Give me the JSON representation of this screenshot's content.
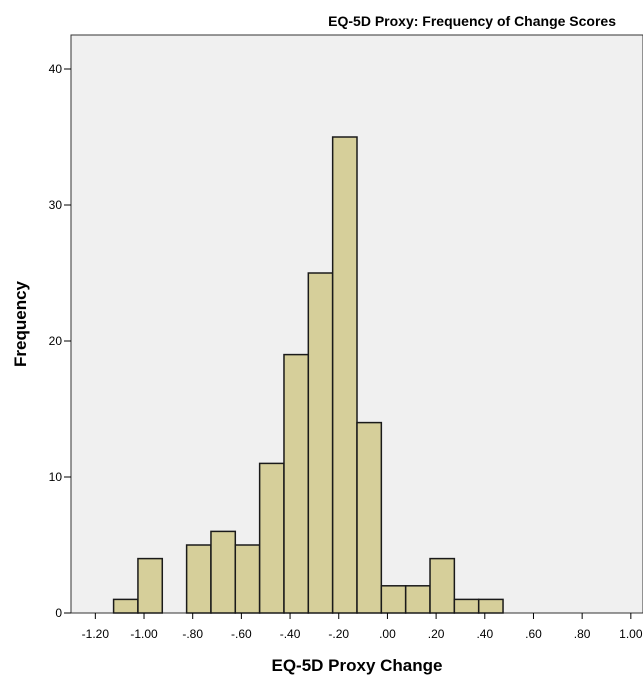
{
  "chart_data": {
    "type": "bar",
    "title": "EQ-5D Proxy: Frequency of Change Scores",
    "xlabel": "EQ-5D Proxy Change",
    "ylabel": "Frequency",
    "xlim": [
      -1.3,
      1.05
    ],
    "ylim": [
      0,
      42.5
    ],
    "x_ticks": [
      -1.2,
      -1.0,
      -0.8,
      -0.6,
      -0.4,
      -0.2,
      0.0,
      0.2,
      0.4,
      0.6,
      0.8,
      1.0
    ],
    "x_tick_labels": [
      "-1.20",
      "-1.00",
      "-.80",
      "-.60",
      "-.40",
      "-.20",
      ".00",
      ".20",
      ".40",
      ".60",
      ".80",
      "1.00"
    ],
    "y_ticks": [
      0,
      10,
      20,
      30,
      40
    ],
    "y_tick_labels": [
      "0",
      "10",
      "20",
      "30",
      "40"
    ],
    "bin_width": 0.1,
    "bins": [
      {
        "start": -1.125,
        "end": -1.025,
        "count": 1
      },
      {
        "start": -1.025,
        "end": -0.925,
        "count": 4
      },
      {
        "start": -0.925,
        "end": -0.825,
        "count": 0
      },
      {
        "start": -0.825,
        "end": -0.725,
        "count": 5
      },
      {
        "start": -0.725,
        "end": -0.625,
        "count": 6
      },
      {
        "start": -0.625,
        "end": -0.525,
        "count": 5
      },
      {
        "start": -0.525,
        "end": -0.425,
        "count": 11
      },
      {
        "start": -0.425,
        "end": -0.325,
        "count": 19
      },
      {
        "start": -0.325,
        "end": -0.225,
        "count": 25
      },
      {
        "start": -0.225,
        "end": -0.125,
        "count": 35
      },
      {
        "start": -0.125,
        "end": -0.025,
        "count": 14
      },
      {
        "start": -0.025,
        "end": 0.075,
        "count": 2
      },
      {
        "start": 0.075,
        "end": 0.175,
        "count": 2
      },
      {
        "start": 0.175,
        "end": 0.275,
        "count": 4
      },
      {
        "start": 0.275,
        "end": 0.375,
        "count": 1
      },
      {
        "start": 0.375,
        "end": 0.475,
        "count": 1
      }
    ],
    "grid": false,
    "bar_color": "#d6cf9a",
    "bar_edge_color": "#1a1a1a",
    "plot_background": "#f0f0f0"
  }
}
